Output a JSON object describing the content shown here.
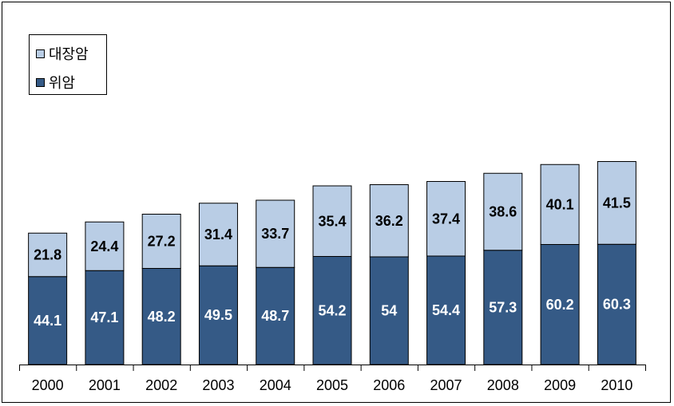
{
  "chart_data": {
    "type": "bar",
    "stacked": true,
    "categories": [
      "2000",
      "2001",
      "2002",
      "2003",
      "2004",
      "2005",
      "2006",
      "2007",
      "2008",
      "2009",
      "2010"
    ],
    "series": [
      {
        "name": "위암",
        "color": "#355a86",
        "label_color": "#ffffff",
        "values": [
          44.1,
          47.1,
          48.2,
          49.5,
          48.7,
          54.2,
          54,
          54.4,
          57.3,
          60.2,
          60.3
        ]
      },
      {
        "name": "대장암",
        "color": "#b9cde5",
        "label_color": "#000000",
        "values": [
          21.8,
          24.4,
          27.2,
          31.4,
          33.7,
          35.4,
          36.2,
          37.4,
          38.6,
          40.1,
          41.5
        ]
      }
    ],
    "value_labels": true,
    "legend_position": "top-left",
    "title": "",
    "xlabel": "",
    "ylabel": "",
    "ylim": [
      0,
      110
    ],
    "grid": false
  }
}
